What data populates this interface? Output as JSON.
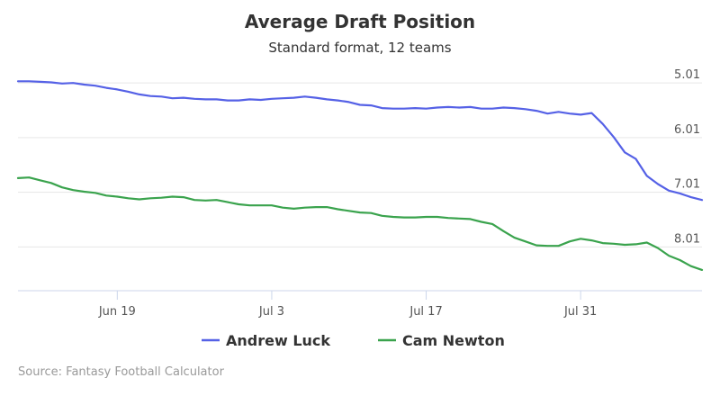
{
  "chart_data": {
    "type": "line",
    "title": "Average Draft Position",
    "subtitle": "Standard format, 12 teams",
    "x_tick_labels": [
      "Jun 19",
      "Jul 3",
      "Jul 17",
      "Jul 31"
    ],
    "x_tick_days": [
      19,
      33,
      47,
      61
    ],
    "x_range": [
      10,
      72
    ],
    "y_tick_labels": [
      "5.01",
      "6.01",
      "7.01",
      "8.01"
    ],
    "y_tick_values": [
      5.01,
      6.01,
      7.01,
      8.01
    ],
    "y_range": [
      4.81,
      8.81
    ],
    "y_reversed": true,
    "x_days": [
      10,
      11,
      12,
      13,
      14,
      15,
      16,
      17,
      18,
      19,
      20,
      21,
      22,
      23,
      24,
      25,
      26,
      27,
      28,
      29,
      30,
      31,
      32,
      33,
      34,
      35,
      36,
      37,
      38,
      39,
      40,
      41,
      42,
      43,
      44,
      45,
      46,
      47,
      48,
      49,
      50,
      51,
      52,
      53,
      54,
      55,
      56,
      57,
      58,
      59,
      60,
      61,
      62,
      63,
      64,
      65,
      66,
      67,
      68,
      69,
      70,
      71,
      72
    ],
    "series": [
      {
        "name": "Andrew Luck",
        "color": "#5561e6",
        "values": [
          4.98,
          4.98,
          4.99,
          5.0,
          5.02,
          5.01,
          5.04,
          5.06,
          5.1,
          5.13,
          5.17,
          5.22,
          5.25,
          5.26,
          5.29,
          5.28,
          5.3,
          5.31,
          5.31,
          5.33,
          5.33,
          5.31,
          5.32,
          5.3,
          5.29,
          5.28,
          5.26,
          5.28,
          5.31,
          5.33,
          5.36,
          5.41,
          5.42,
          5.47,
          5.48,
          5.48,
          5.47,
          5.48,
          5.46,
          5.45,
          5.46,
          5.45,
          5.48,
          5.48,
          5.46,
          5.47,
          5.49,
          5.52,
          5.57,
          5.54,
          5.57,
          5.59,
          5.56,
          5.76,
          6.0,
          6.28,
          6.4,
          6.71,
          6.86,
          6.98,
          7.03,
          7.1,
          7.15
        ]
      },
      {
        "name": "Cam Newton",
        "color": "#3aa34d",
        "values": [
          6.75,
          6.74,
          6.79,
          6.84,
          6.92,
          6.97,
          7.0,
          7.02,
          7.07,
          7.09,
          7.12,
          7.14,
          7.12,
          7.11,
          7.09,
          7.1,
          7.15,
          7.16,
          7.15,
          7.19,
          7.23,
          7.25,
          7.25,
          7.25,
          7.29,
          7.31,
          7.29,
          7.28,
          7.28,
          7.32,
          7.35,
          7.38,
          7.39,
          7.44,
          7.46,
          7.47,
          7.47,
          7.46,
          7.46,
          7.48,
          7.49,
          7.5,
          7.55,
          7.59,
          7.72,
          7.84,
          7.91,
          7.98,
          7.99,
          7.99,
          7.91,
          7.86,
          7.89,
          7.94,
          7.95,
          7.97,
          7.96,
          7.93,
          8.03,
          8.17,
          8.25,
          8.36,
          8.43
        ]
      }
    ],
    "legend": [
      "Andrew Luck",
      "Cam Newton"
    ],
    "legend_position": "bottom",
    "grid": true
  },
  "credits": "Source: Fantasy Football Calculator",
  "colors": {
    "gridline": "#e6e6e6",
    "axis": "#ccd6eb",
    "text": "#333333"
  }
}
